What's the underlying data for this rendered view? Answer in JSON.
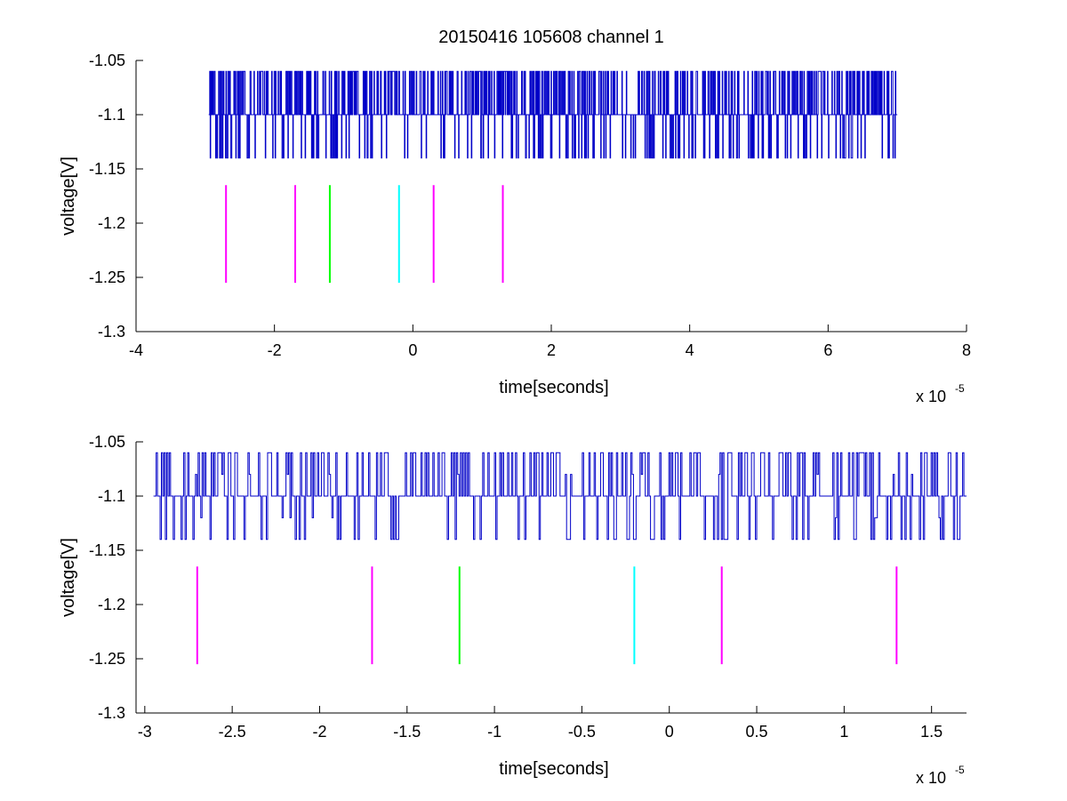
{
  "figure": {
    "title": "20150416 105608 channel 1"
  },
  "chart_data": [
    {
      "type": "line",
      "xlabel": "time[seconds]",
      "ylabel": "voltage[V]",
      "x_exponent_base": "x 10",
      "x_exponent_power": "-5",
      "xlim": [
        -4,
        8
      ],
      "ylim": [
        -1.3,
        -1.05
      ],
      "xticks": [
        -4,
        -2,
        0,
        2,
        4,
        6,
        8
      ],
      "xtick_labels": [
        "-4",
        "-2",
        "0",
        "2",
        "4",
        "6",
        "8"
      ],
      "yticks": [
        -1.3,
        -1.25,
        -1.2,
        -1.15,
        -1.1,
        -1.05
      ],
      "ytick_labels": [
        "-1.3",
        "-1.25",
        "-1.2",
        "-1.15",
        "-1.1",
        "-1.05"
      ],
      "grid": false,
      "series": [
        {
          "kind": "noise_trace",
          "color": "#0000c8",
          "x_range": [
            -2.95,
            7.0
          ],
          "levels": [
            -1.14,
            -1.1,
            -1.06
          ]
        }
      ],
      "markers": [
        {
          "x": -2.7,
          "y_range": [
            -1.255,
            -1.165
          ],
          "color": "#ff00ff"
        },
        {
          "x": -1.7,
          "y_range": [
            -1.255,
            -1.165
          ],
          "color": "#ff00ff"
        },
        {
          "x": -1.2,
          "y_range": [
            -1.255,
            -1.165
          ],
          "color": "#00ff00"
        },
        {
          "x": -0.2,
          "y_range": [
            -1.255,
            -1.165
          ],
          "color": "#00ffff"
        },
        {
          "x": 0.3,
          "y_range": [
            -1.255,
            -1.165
          ],
          "color": "#ff00ff"
        },
        {
          "x": 1.3,
          "y_range": [
            -1.255,
            -1.165
          ],
          "color": "#ff00ff"
        }
      ]
    },
    {
      "type": "line",
      "xlabel": "time[seconds]",
      "ylabel": "voltage[V]",
      "x_exponent_base": "x 10",
      "x_exponent_power": "-5",
      "xlim": [
        -3.05,
        1.7
      ],
      "ylim": [
        -1.3,
        -1.05
      ],
      "xticks": [
        -3,
        -2.5,
        -2,
        -1.5,
        -1,
        -0.5,
        0,
        0.5,
        1,
        1.5
      ],
      "xtick_labels": [
        "-3",
        "-2.5",
        "-2",
        "-1.5",
        "-1",
        "-0.5",
        "0",
        "0.5",
        "1",
        "1.5"
      ],
      "yticks": [
        -1.3,
        -1.25,
        -1.2,
        -1.15,
        -1.1,
        -1.05
      ],
      "ytick_labels": [
        "-1.3",
        "-1.25",
        "-1.2",
        "-1.15",
        "-1.1",
        "-1.05"
      ],
      "grid": false,
      "series": [
        {
          "kind": "noise_trace",
          "color": "#0000c8",
          "x_range": [
            -2.95,
            1.7
          ],
          "levels": [
            -1.14,
            -1.12,
            -1.1,
            -1.08,
            -1.06
          ]
        }
      ],
      "markers": [
        {
          "x": -2.7,
          "y_range": [
            -1.255,
            -1.165
          ],
          "color": "#ff00ff"
        },
        {
          "x": -1.7,
          "y_range": [
            -1.255,
            -1.165
          ],
          "color": "#ff00ff"
        },
        {
          "x": -1.2,
          "y_range": [
            -1.255,
            -1.165
          ],
          "color": "#00ff00"
        },
        {
          "x": -0.2,
          "y_range": [
            -1.255,
            -1.165
          ],
          "color": "#00ffff"
        },
        {
          "x": 0.3,
          "y_range": [
            -1.255,
            -1.165
          ],
          "color": "#ff00ff"
        },
        {
          "x": 1.3,
          "y_range": [
            -1.255,
            -1.165
          ],
          "color": "#ff00ff"
        }
      ]
    }
  ]
}
